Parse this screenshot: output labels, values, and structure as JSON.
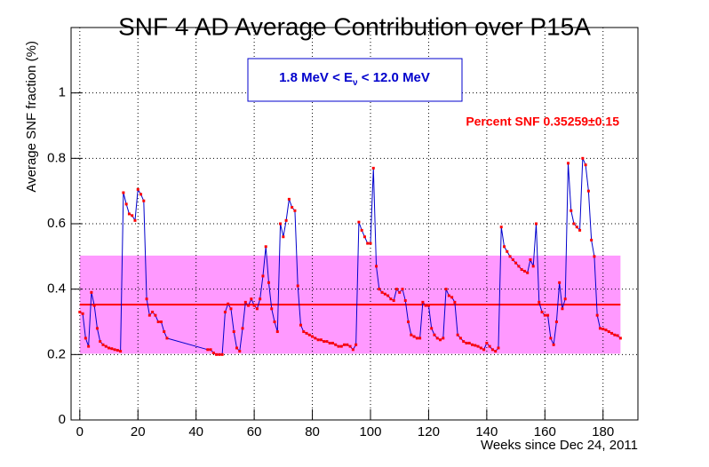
{
  "chart_data": {
    "type": "line",
    "title": "SNF 4 AD Average Contribution over P15A",
    "x_label": "Weeks since Dec 24, 2011",
    "y_label": "Average SNF fraction (%)",
    "annotation": {
      "prefix": "1.8 MeV < E",
      "subscript": "ν",
      "suffix": " < 12.0 MeV"
    },
    "fit_label": "Percent SNF 0.35259±0.15",
    "fit": {
      "value": 0.35259,
      "error": 0.15,
      "line_color": "#ff0000",
      "band_color": "#ff99ff"
    },
    "xlim": [
      -3,
      192
    ],
    "ylim": [
      0,
      1.2
    ],
    "xticks": [
      0,
      20,
      40,
      60,
      80,
      100,
      120,
      140,
      160,
      180
    ],
    "yticks": [
      0,
      0.2,
      0.4,
      0.6,
      0.8,
      1
    ],
    "grid": true,
    "series": [
      {
        "color": "#0000cc",
        "marker_color": "#ff0000",
        "x": [
          0,
          1,
          2,
          3,
          4,
          5,
          6,
          7,
          8,
          9,
          10,
          11,
          12,
          13,
          14,
          15,
          16,
          17,
          18,
          19,
          20,
          21,
          22,
          23,
          24,
          25,
          26,
          27,
          28,
          29,
          30,
          44,
          45,
          46,
          47,
          48,
          49,
          50,
          51,
          52,
          53,
          54,
          55,
          56,
          57,
          58,
          59,
          60,
          61,
          62,
          63,
          64,
          65,
          66,
          67,
          68,
          69,
          70,
          71,
          72,
          73,
          74,
          75,
          76,
          77,
          78,
          79,
          80,
          81,
          82,
          83,
          84,
          85,
          86,
          87,
          88,
          89,
          90,
          91,
          92,
          93,
          94,
          95,
          96,
          97,
          98,
          99,
          100,
          101,
          102,
          103,
          104,
          105,
          106,
          107,
          108,
          109,
          110,
          111,
          112,
          113,
          114,
          115,
          116,
          117,
          118,
          119,
          120,
          121,
          122,
          123,
          124,
          125,
          126,
          127,
          128,
          129,
          130,
          131,
          132,
          133,
          134,
          135,
          136,
          137,
          138,
          139,
          140,
          141,
          142,
          143,
          144,
          145,
          146,
          147,
          148,
          149,
          150,
          151,
          152,
          153,
          154,
          155,
          156,
          157,
          158,
          159,
          160,
          161,
          162,
          163,
          164,
          165,
          166,
          167,
          168,
          169,
          170,
          171,
          172,
          173,
          174,
          175,
          176,
          177,
          178,
          179,
          180,
          181,
          182,
          183,
          184,
          185,
          186
        ],
        "values": [
          0.33,
          0.325,
          0.25,
          0.225,
          0.39,
          0.35,
          0.28,
          0.24,
          0.23,
          0.225,
          0.22,
          0.218,
          0.215,
          0.213,
          0.21,
          0.695,
          0.66,
          0.63,
          0.625,
          0.61,
          0.705,
          0.69,
          0.67,
          0.37,
          0.32,
          0.33,
          0.32,
          0.3,
          0.3,
          0.27,
          0.25,
          0.215,
          0.215,
          0.205,
          0.2,
          0.2,
          0.2,
          0.33,
          0.355,
          0.34,
          0.27,
          0.22,
          0.21,
          0.28,
          0.36,
          0.35,
          0.37,
          0.35,
          0.34,
          0.37,
          0.44,
          0.53,
          0.42,
          0.34,
          0.3,
          0.27,
          0.6,
          0.56,
          0.61,
          0.675,
          0.65,
          0.64,
          0.41,
          0.29,
          0.27,
          0.265,
          0.26,
          0.255,
          0.25,
          0.245,
          0.245,
          0.24,
          0.24,
          0.235,
          0.235,
          0.23,
          0.225,
          0.225,
          0.23,
          0.23,
          0.225,
          0.215,
          0.23,
          0.605,
          0.58,
          0.56,
          0.54,
          0.54,
          0.77,
          0.47,
          0.4,
          0.39,
          0.385,
          0.38,
          0.37,
          0.365,
          0.4,
          0.39,
          0.4,
          0.365,
          0.3,
          0.26,
          0.255,
          0.25,
          0.25,
          0.36,
          0.35,
          0.35,
          0.28,
          0.26,
          0.25,
          0.245,
          0.25,
          0.4,
          0.38,
          0.375,
          0.36,
          0.26,
          0.25,
          0.24,
          0.235,
          0.235,
          0.23,
          0.228,
          0.225,
          0.22,
          0.215,
          0.235,
          0.225,
          0.215,
          0.21,
          0.22,
          0.59,
          0.53,
          0.515,
          0.5,
          0.49,
          0.48,
          0.47,
          0.46,
          0.455,
          0.45,
          0.49,
          0.47,
          0.6,
          0.36,
          0.33,
          0.32,
          0.32,
          0.25,
          0.23,
          0.3,
          0.42,
          0.34,
          0.37,
          0.785,
          0.64,
          0.6,
          0.59,
          0.58,
          0.8,
          0.78,
          0.7,
          0.55,
          0.5,
          0.32,
          0.28,
          0.278,
          0.275,
          0.27,
          0.265,
          0.26,
          0.258,
          0.25
        ]
      }
    ]
  }
}
